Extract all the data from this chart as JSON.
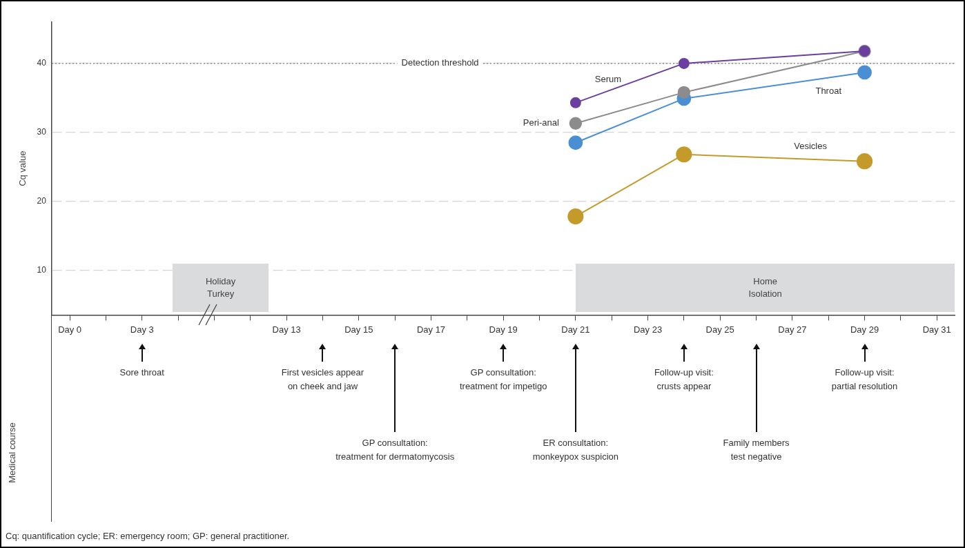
{
  "chart_data": {
    "type": "line",
    "ylabel": "Cq value",
    "categories": [
      "Day 0",
      null,
      "Day 3",
      null,
      null,
      null,
      "Day 13",
      null,
      "Day 15",
      null,
      "Day 17",
      null,
      "Day 19",
      null,
      "Day 21",
      null,
      "Day 23",
      null,
      "Day 25",
      null,
      "Day 27",
      null,
      "Day 29",
      null,
      "Day 31"
    ],
    "ylim": [
      3.5,
      46
    ],
    "yticks": [
      10,
      20,
      30,
      40
    ],
    "series": [
      {
        "name": "Serum",
        "color": "#6a3fa0",
        "values": [
          null,
          null,
          null,
          null,
          null,
          null,
          null,
          null,
          null,
          null,
          null,
          null,
          null,
          null,
          34.3,
          null,
          null,
          40,
          null,
          null,
          null,
          null,
          41.8,
          null,
          null
        ]
      },
      {
        "name": "Peri-anal",
        "color": "#8c8c8c",
        "values": [
          null,
          null,
          null,
          null,
          null,
          null,
          null,
          null,
          null,
          null,
          null,
          null,
          null,
          null,
          31.3,
          null,
          null,
          35.8,
          null,
          null,
          null,
          null,
          41.8,
          null,
          null
        ]
      },
      {
        "name": "Throat",
        "color": "#4a8fd4",
        "values": [
          null,
          null,
          null,
          null,
          null,
          null,
          null,
          null,
          null,
          null,
          null,
          null,
          null,
          null,
          28.5,
          null,
          null,
          34.9,
          null,
          null,
          null,
          null,
          38.7,
          null,
          null
        ]
      },
      {
        "name": "Vesicles",
        "color": "#c49a2a",
        "values": [
          null,
          null,
          null,
          null,
          null,
          null,
          null,
          null,
          null,
          null,
          null,
          null,
          null,
          null,
          17.8,
          null,
          null,
          26.8,
          null,
          null,
          null,
          null,
          25.8,
          null,
          null
        ]
      }
    ],
    "marker": "circle",
    "line_style": "solid",
    "grid": "y",
    "ref_lines": [
      {
        "axis": "y",
        "value": 40,
        "label": "Detection threshold",
        "line_style": "dotted",
        "color": "#777777"
      }
    ],
    "annotations": [
      "Holiday\nTurkey",
      "Home\nIsolation",
      "Sore throat",
      "First vesicles appear\non cheek and jaw",
      "GP consultation:\ntreatment for dermatomycosis",
      "GP consultation:\ntreatment for impetigo",
      "ER consultation:\nmonkeypox suspicion",
      "Follow-up visit:\ncrusts appear",
      "Family members\ntest negative",
      "Follow-up visit:\npartial resolution",
      "Medical course",
      "Cq: quantification cycle; ER: emergency room; GP: general practitioner."
    ]
  }
}
